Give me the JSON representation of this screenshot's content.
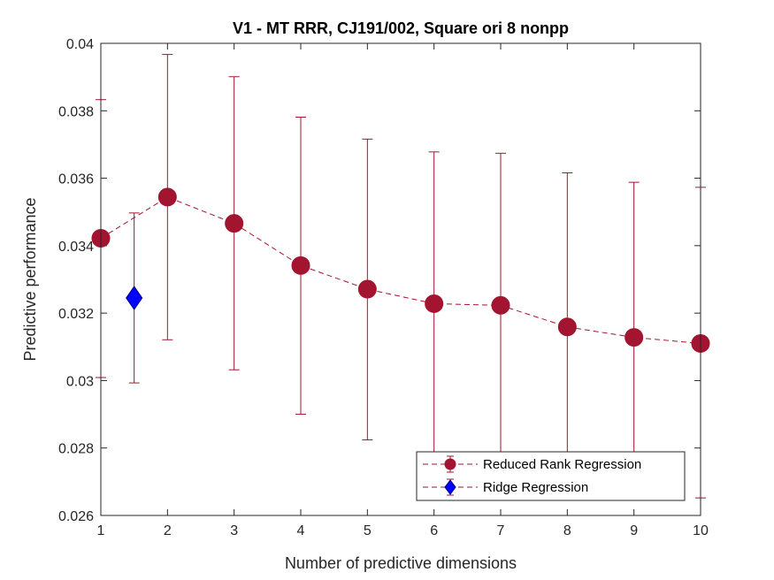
{
  "chart_data": {
    "type": "scatter",
    "title": "V1 - MT RRR, CJ191/002, Square ori 8 nonpp",
    "xlabel": "Number of predictive dimensions",
    "ylabel": "Predictive performance",
    "xlim": [
      1,
      10
    ],
    "ylim": [
      0.026,
      0.04
    ],
    "xticks": [
      1,
      2,
      3,
      4,
      5,
      6,
      7,
      8,
      9,
      10
    ],
    "xtick_labels": [
      "1",
      "2",
      "3",
      "4",
      "5",
      "6",
      "7",
      "8",
      "9",
      "10"
    ],
    "yticks": [
      0.026,
      0.028,
      0.03,
      0.032,
      0.034,
      0.036,
      0.038,
      0.04
    ],
    "ytick_labels": [
      "0.026",
      "0.028",
      "0.03",
      "0.032",
      "0.034",
      "0.036",
      "0.038",
      "0.04"
    ],
    "grid": false,
    "legend_position": "bottom-right",
    "series": [
      {
        "name": "Reduced Rank Regression",
        "color": "#A2142F",
        "marker": "circle",
        "line_style": "dashed",
        "x": [
          1,
          2,
          3,
          4,
          5,
          6,
          7,
          8,
          9,
          10
        ],
        "y": [
          0.03422,
          0.03544,
          0.03466,
          0.03341,
          0.03271,
          0.03228,
          0.03223,
          0.03159,
          0.03128,
          0.0311
        ],
        "err_low": [
          0.03009,
          0.03121,
          0.03032,
          0.029,
          0.02824,
          0.0278,
          0.0277,
          0.0269,
          0.0266,
          0.02652
        ],
        "err_high": [
          0.03833,
          0.03967,
          0.03901,
          0.03781,
          0.03716,
          0.03678,
          0.03674,
          0.03616,
          0.03588,
          0.03573
        ]
      },
      {
        "name": "Ridge Regression",
        "color": "#0000FF",
        "marker": "diamond",
        "line_style": "none",
        "x": [
          1.5
        ],
        "y": [
          0.03245
        ],
        "err_low": [
          0.02993
        ],
        "err_high": [
          0.03497
        ]
      }
    ]
  }
}
